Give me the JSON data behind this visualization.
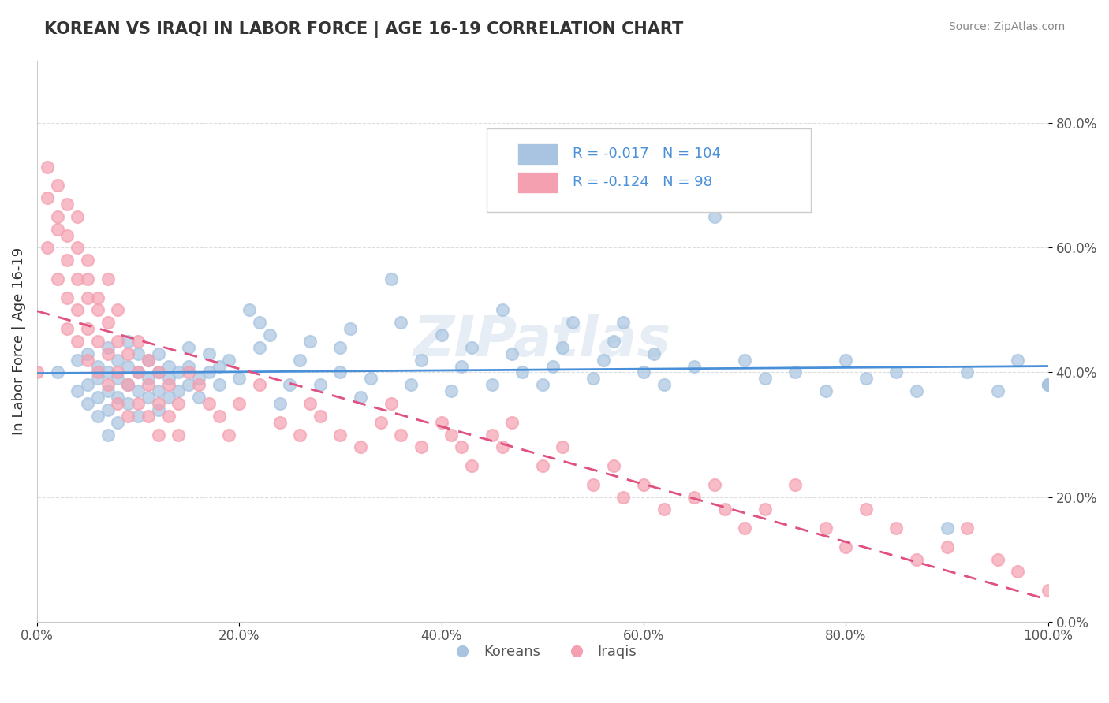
{
  "title": "KOREAN VS IRAQI IN LABOR FORCE | AGE 16-19 CORRELATION CHART",
  "source": "Source: ZipAtlas.com",
  "xlabel_label": "",
  "ylabel_label": "In Labor Force | Age 16-19",
  "xlim": [
    0.0,
    1.0
  ],
  "ylim": [
    0.0,
    0.9
  ],
  "xticks": [
    0.0,
    0.2,
    0.4,
    0.6,
    0.8,
    1.0
  ],
  "xtick_labels": [
    "0.0%",
    "20.0%",
    "40.0%",
    "60.0%",
    "80.0%",
    "100.0%"
  ],
  "yticks": [
    0.0,
    0.2,
    0.4,
    0.6,
    0.8
  ],
  "ytick_labels": [
    "0.0%",
    "20.0%",
    "40.0%",
    "60.0%",
    "80.0%"
  ],
  "korean_R": -0.017,
  "korean_N": 104,
  "iraqi_R": -0.124,
  "iraqi_N": 98,
  "korean_color": "#a8c4e0",
  "iraqi_color": "#f4a0b0",
  "korean_line_color": "#4a90d9",
  "iraqi_line_color": "#e05080",
  "watermark": "ZIPatlas",
  "background_color": "#ffffff",
  "grid_color": "#dddddd",
  "legend_text_color": "#4a90d9",
  "koreans_label": "Koreans",
  "iraqis_label": "Iraqis",
  "korean_points_x": [
    0.02,
    0.04,
    0.04,
    0.05,
    0.05,
    0.05,
    0.06,
    0.06,
    0.06,
    0.06,
    0.07,
    0.07,
    0.07,
    0.07,
    0.07,
    0.08,
    0.08,
    0.08,
    0.08,
    0.09,
    0.09,
    0.09,
    0.09,
    0.1,
    0.1,
    0.1,
    0.1,
    0.11,
    0.11,
    0.11,
    0.12,
    0.12,
    0.12,
    0.12,
    0.13,
    0.13,
    0.13,
    0.14,
    0.14,
    0.15,
    0.15,
    0.15,
    0.16,
    0.16,
    0.17,
    0.17,
    0.18,
    0.18,
    0.19,
    0.2,
    0.21,
    0.22,
    0.22,
    0.23,
    0.24,
    0.25,
    0.26,
    0.27,
    0.28,
    0.3,
    0.3,
    0.31,
    0.32,
    0.33,
    0.35,
    0.36,
    0.37,
    0.38,
    0.4,
    0.41,
    0.42,
    0.43,
    0.45,
    0.46,
    0.47,
    0.48,
    0.5,
    0.51,
    0.52,
    0.53,
    0.55,
    0.56,
    0.57,
    0.58,
    0.6,
    0.61,
    0.62,
    0.65,
    0.67,
    0.7,
    0.72,
    0.75,
    0.78,
    0.8,
    0.82,
    0.85,
    0.87,
    0.9,
    0.92,
    0.95,
    0.97,
    1.0,
    1.0,
    1.0
  ],
  "korean_points_y": [
    0.4,
    0.37,
    0.42,
    0.35,
    0.38,
    0.43,
    0.33,
    0.36,
    0.39,
    0.41,
    0.3,
    0.34,
    0.37,
    0.4,
    0.44,
    0.32,
    0.36,
    0.39,
    0.42,
    0.35,
    0.38,
    0.41,
    0.45,
    0.33,
    0.37,
    0.4,
    0.43,
    0.36,
    0.39,
    0.42,
    0.34,
    0.37,
    0.4,
    0.43,
    0.36,
    0.39,
    0.41,
    0.37,
    0.4,
    0.38,
    0.41,
    0.44,
    0.36,
    0.39,
    0.4,
    0.43,
    0.38,
    0.41,
    0.42,
    0.39,
    0.5,
    0.44,
    0.48,
    0.46,
    0.35,
    0.38,
    0.42,
    0.45,
    0.38,
    0.4,
    0.44,
    0.47,
    0.36,
    0.39,
    0.55,
    0.48,
    0.38,
    0.42,
    0.46,
    0.37,
    0.41,
    0.44,
    0.38,
    0.5,
    0.43,
    0.4,
    0.38,
    0.41,
    0.44,
    0.48,
    0.39,
    0.42,
    0.45,
    0.48,
    0.4,
    0.43,
    0.38,
    0.41,
    0.65,
    0.42,
    0.39,
    0.4,
    0.37,
    0.42,
    0.39,
    0.4,
    0.37,
    0.15,
    0.4,
    0.37,
    0.42,
    0.38,
    0.38,
    0.38
  ],
  "iraqi_points_x": [
    0.0,
    0.01,
    0.01,
    0.01,
    0.02,
    0.02,
    0.02,
    0.02,
    0.03,
    0.03,
    0.03,
    0.03,
    0.03,
    0.04,
    0.04,
    0.04,
    0.04,
    0.04,
    0.05,
    0.05,
    0.05,
    0.05,
    0.05,
    0.06,
    0.06,
    0.06,
    0.06,
    0.07,
    0.07,
    0.07,
    0.07,
    0.08,
    0.08,
    0.08,
    0.08,
    0.09,
    0.09,
    0.09,
    0.1,
    0.1,
    0.1,
    0.11,
    0.11,
    0.11,
    0.12,
    0.12,
    0.12,
    0.13,
    0.13,
    0.14,
    0.14,
    0.15,
    0.16,
    0.17,
    0.18,
    0.19,
    0.2,
    0.22,
    0.24,
    0.26,
    0.27,
    0.28,
    0.3,
    0.32,
    0.34,
    0.35,
    0.36,
    0.38,
    0.4,
    0.41,
    0.42,
    0.43,
    0.45,
    0.46,
    0.47,
    0.5,
    0.52,
    0.55,
    0.57,
    0.58,
    0.6,
    0.62,
    0.65,
    0.67,
    0.68,
    0.7,
    0.72,
    0.75,
    0.78,
    0.8,
    0.82,
    0.85,
    0.87,
    0.9,
    0.92,
    0.95,
    0.97,
    1.0
  ],
  "iraqi_points_y": [
    0.4,
    0.73,
    0.68,
    0.6,
    0.65,
    0.7,
    0.63,
    0.55,
    0.62,
    0.67,
    0.58,
    0.52,
    0.47,
    0.6,
    0.55,
    0.5,
    0.45,
    0.65,
    0.58,
    0.52,
    0.47,
    0.42,
    0.55,
    0.5,
    0.45,
    0.4,
    0.52,
    0.48,
    0.43,
    0.38,
    0.55,
    0.45,
    0.4,
    0.35,
    0.5,
    0.43,
    0.38,
    0.33,
    0.4,
    0.35,
    0.45,
    0.38,
    0.33,
    0.42,
    0.35,
    0.3,
    0.4,
    0.33,
    0.38,
    0.3,
    0.35,
    0.4,
    0.38,
    0.35,
    0.33,
    0.3,
    0.35,
    0.38,
    0.32,
    0.3,
    0.35,
    0.33,
    0.3,
    0.28,
    0.32,
    0.35,
    0.3,
    0.28,
    0.32,
    0.3,
    0.28,
    0.25,
    0.3,
    0.28,
    0.32,
    0.25,
    0.28,
    0.22,
    0.25,
    0.2,
    0.22,
    0.18,
    0.2,
    0.22,
    0.18,
    0.15,
    0.18,
    0.22,
    0.15,
    0.12,
    0.18,
    0.15,
    0.1,
    0.12,
    0.15,
    0.1,
    0.08,
    0.05
  ]
}
